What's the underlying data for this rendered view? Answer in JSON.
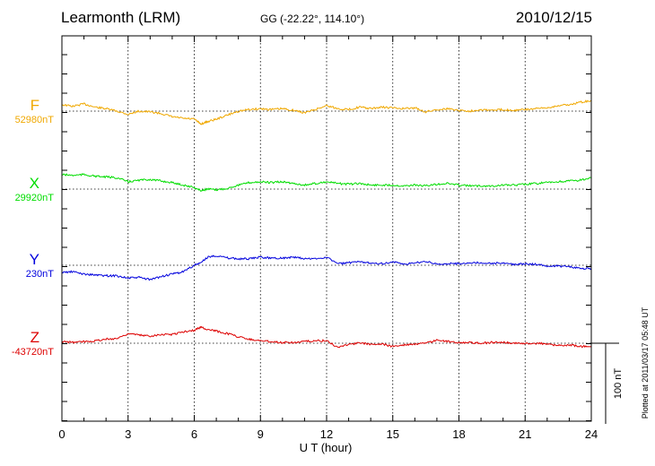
{
  "header": {
    "station": "Learmonth (LRM)",
    "coords": "GG (-22.22°, 114.10°)",
    "date": "2010/12/15"
  },
  "plotted_note": "Plotted at 2011/03/17 05:48 UT",
  "scale_label": "100 nT",
  "chart_data": {
    "type": "line",
    "xlabel": "U T (hour)",
    "xlim": [
      0,
      24
    ],
    "xticks": [
      0,
      3,
      6,
      9,
      12,
      15,
      18,
      21,
      24
    ],
    "grid": true,
    "series": [
      {
        "name": "F",
        "baseline_label": "52980nT",
        "baseline": 52980,
        "color": "#f0a800",
        "x": [
          0,
          0.5,
          1,
          1.5,
          2,
          2.5,
          3,
          3.5,
          4,
          4.5,
          5,
          5.5,
          6,
          6.3,
          6.6,
          7,
          7.5,
          8,
          8.5,
          9,
          9.5,
          10,
          10.5,
          11,
          11.5,
          12,
          12.5,
          13,
          13.5,
          14,
          14.5,
          15,
          15.5,
          16,
          16.5,
          17,
          17.5,
          18,
          18.5,
          19,
          19.5,
          20,
          20.5,
          21,
          21.5,
          22,
          22.5,
          23,
          23.5,
          24
        ],
        "values": [
          52988,
          52986,
          52989,
          52985,
          52983,
          52980,
          52976,
          52980,
          52979,
          52977,
          52973,
          52971,
          52970,
          52964,
          52967,
          52970,
          52975,
          52980,
          52982,
          52983,
          52982,
          52983,
          52981,
          52978,
          52982,
          52987,
          52983,
          52982,
          52985,
          52983,
          52985,
          52984,
          52983,
          52984,
          52979,
          52982,
          52983,
          52981,
          52980,
          52982,
          52981,
          52982,
          52981,
          52982,
          52983,
          52984,
          52987,
          52988,
          52991,
          52993
        ]
      },
      {
        "name": "X",
        "baseline_label": "29920nT",
        "baseline": 29920,
        "color": "#00dd00",
        "x": [
          0,
          0.5,
          1,
          1.5,
          2,
          2.5,
          3,
          3.5,
          4,
          4.5,
          5,
          5.5,
          6,
          6.3,
          6.6,
          7,
          7.5,
          8,
          8.5,
          9,
          9.5,
          10,
          10.5,
          11,
          11.5,
          12,
          12.5,
          13,
          13.5,
          14,
          14.5,
          15,
          15.5,
          16,
          16.5,
          17,
          17.5,
          18,
          18.5,
          19,
          19.5,
          20,
          20.5,
          21,
          21.5,
          22,
          22.5,
          23,
          23.5,
          24
        ],
        "values": [
          29938,
          29937,
          29938,
          29936,
          29935,
          29934,
          29929,
          29931,
          29932,
          29930,
          29928,
          29925,
          29922,
          29918,
          29920,
          29919,
          29921,
          29925,
          29928,
          29929,
          29928,
          29929,
          29927,
          29925,
          29927,
          29929,
          29927,
          29926,
          29927,
          29925,
          29925,
          29925,
          29924,
          29925,
          29924,
          29926,
          29927,
          29925,
          29924,
          29924,
          29924,
          29925,
          29925,
          29926,
          29927,
          29928,
          29929,
          29930,
          29931,
          29934
        ]
      },
      {
        "name": "Y",
        "baseline_label": "230nT",
        "baseline": 230,
        "color": "#0000dd",
        "x": [
          0,
          0.5,
          1,
          1.5,
          2,
          2.5,
          3,
          3.5,
          4,
          4.5,
          5,
          5.5,
          6,
          6.3,
          6.6,
          7,
          7.5,
          8,
          8.5,
          9,
          9.5,
          10,
          10.5,
          11,
          11.5,
          12,
          12.5,
          13,
          13.5,
          14,
          14.5,
          15,
          15.5,
          16,
          16.5,
          17,
          17.5,
          18,
          18.5,
          19,
          19.5,
          20,
          20.5,
          21,
          21.5,
          22,
          22.5,
          23,
          23.5,
          24
        ],
        "values": [
          221,
          222,
          219,
          218,
          217,
          217,
          214,
          215,
          212,
          216,
          219,
          222,
          230,
          233,
          240,
          242,
          239,
          238,
          238,
          240,
          239,
          239,
          240,
          238,
          238,
          240,
          232,
          233,
          234,
          233,
          232,
          234,
          231,
          233,
          235,
          231,
          232,
          232,
          233,
          233,
          232,
          233,
          231,
          232,
          231,
          229,
          229,
          228,
          226,
          226
        ]
      },
      {
        "name": "Z",
        "baseline_label": "-43720nT",
        "baseline": -43720,
        "color": "#dd0000",
        "x": [
          0,
          0.5,
          1,
          1.5,
          2,
          2.5,
          3,
          3.5,
          4,
          4.5,
          5,
          5.5,
          6,
          6.3,
          6.6,
          7,
          7.5,
          8,
          8.5,
          9,
          9.5,
          10,
          10.5,
          11,
          11.5,
          12,
          12.5,
          13,
          13.5,
          14,
          14.5,
          15,
          15.5,
          16,
          16.5,
          17,
          17.5,
          18,
          18.5,
          19,
          19.5,
          20,
          20.5,
          21,
          21.5,
          22,
          22.5,
          23,
          23.5,
          24
        ],
        "values": [
          -43718,
          -43719,
          -43718,
          -43717,
          -43715,
          -43714,
          -43708,
          -43710,
          -43711,
          -43709,
          -43709,
          -43706,
          -43704,
          -43700,
          -43703,
          -43705,
          -43708,
          -43712,
          -43715,
          -43717,
          -43718,
          -43719,
          -43719,
          -43718,
          -43717,
          -43717,
          -43725,
          -43721,
          -43720,
          -43721,
          -43721,
          -43724,
          -43722,
          -43721,
          -43720,
          -43716,
          -43718,
          -43719,
          -43719,
          -43720,
          -43719,
          -43719,
          -43720,
          -43720,
          -43720,
          -43721,
          -43723,
          -43722,
          -43724,
          -43724
        ]
      }
    ]
  }
}
